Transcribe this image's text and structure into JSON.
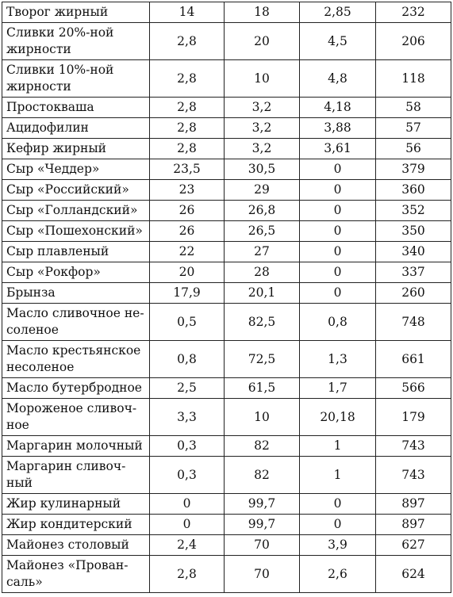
{
  "table": {
    "rows": [
      {
        "name": "Творог жирный",
        "protein": "14",
        "fat": "18",
        "carbs": "2,85",
        "kcal": "232"
      },
      {
        "name": "Сливки 20%-ной\nжирности",
        "protein": "2,8",
        "fat": "20",
        "carbs": "4,5",
        "kcal": "206"
      },
      {
        "name": "Сливки 10%-ной\nжирности",
        "protein": "2,8",
        "fat": "10",
        "carbs": "4,8",
        "kcal": "118"
      },
      {
        "name": "Простокваша",
        "protein": "2,8",
        "fat": "3,2",
        "carbs": "4,18",
        "kcal": "58"
      },
      {
        "name": "Ацидофилин",
        "protein": "2,8",
        "fat": "3,2",
        "carbs": "3,88",
        "kcal": "57"
      },
      {
        "name": "Кефир жирный",
        "protein": "2,8",
        "fat": "3,2",
        "carbs": "3,61",
        "kcal": "56"
      },
      {
        "name": "Сыр «Чеддер»",
        "protein": "23,5",
        "fat": "30,5",
        "carbs": "0",
        "kcal": "379"
      },
      {
        "name": "Сыр «Российский»",
        "protein": "23",
        "fat": "29",
        "carbs": "0",
        "kcal": "360"
      },
      {
        "name": "Сыр «Голландский»",
        "protein": "26",
        "fat": "26,8",
        "carbs": "0",
        "kcal": "352"
      },
      {
        "name": "Сыр «Пошехонский»",
        "protein": "26",
        "fat": "26,5",
        "carbs": "0",
        "kcal": "350"
      },
      {
        "name": "Сыр плавленый",
        "protein": "22",
        "fat": "27",
        "carbs": "0",
        "kcal": "340"
      },
      {
        "name": "Сыр «Рокфор»",
        "protein": "20",
        "fat": "28",
        "carbs": "0",
        "kcal": "337"
      },
      {
        "name": "Брынза",
        "protein": "17,9",
        "fat": "20,1",
        "carbs": "0",
        "kcal": "260"
      },
      {
        "name": "Масло сливочное не-\nсоленое",
        "protein": "0,5",
        "fat": "82,5",
        "carbs": "0,8",
        "kcal": "748"
      },
      {
        "name": "Масло крестьянское\nнесоленое",
        "protein": "0,8",
        "fat": "72,5",
        "carbs": "1,3",
        "kcal": "661"
      },
      {
        "name": "Масло бутербродное",
        "protein": "2,5",
        "fat": "61,5",
        "carbs": "1,7",
        "kcal": "566"
      },
      {
        "name": "Мороженое сливоч-\nное",
        "protein": "3,3",
        "fat": "10",
        "carbs": "20,18",
        "kcal": "179"
      },
      {
        "name": "Маргарин молочный",
        "protein": "0,3",
        "fat": "82",
        "carbs": "1",
        "kcal": "743"
      },
      {
        "name": "Маргарин сливоч-\nный",
        "protein": "0,3",
        "fat": "82",
        "carbs": "1",
        "kcal": "743"
      },
      {
        "name": "Жир кулинарный",
        "protein": "0",
        "fat": "99,7",
        "carbs": "0",
        "kcal": "897"
      },
      {
        "name": "Жир кондитерский",
        "protein": "0",
        "fat": "99,7",
        "carbs": "0",
        "kcal": "897"
      },
      {
        "name": "Майонез столовый",
        "protein": "2,4",
        "fat": "70",
        "carbs": "3,9",
        "kcal": "627"
      },
      {
        "name": "Майонез «Прован-\nсаль»",
        "protein": "2,8",
        "fat": "70",
        "carbs": "2,6",
        "kcal": "624"
      }
    ]
  }
}
